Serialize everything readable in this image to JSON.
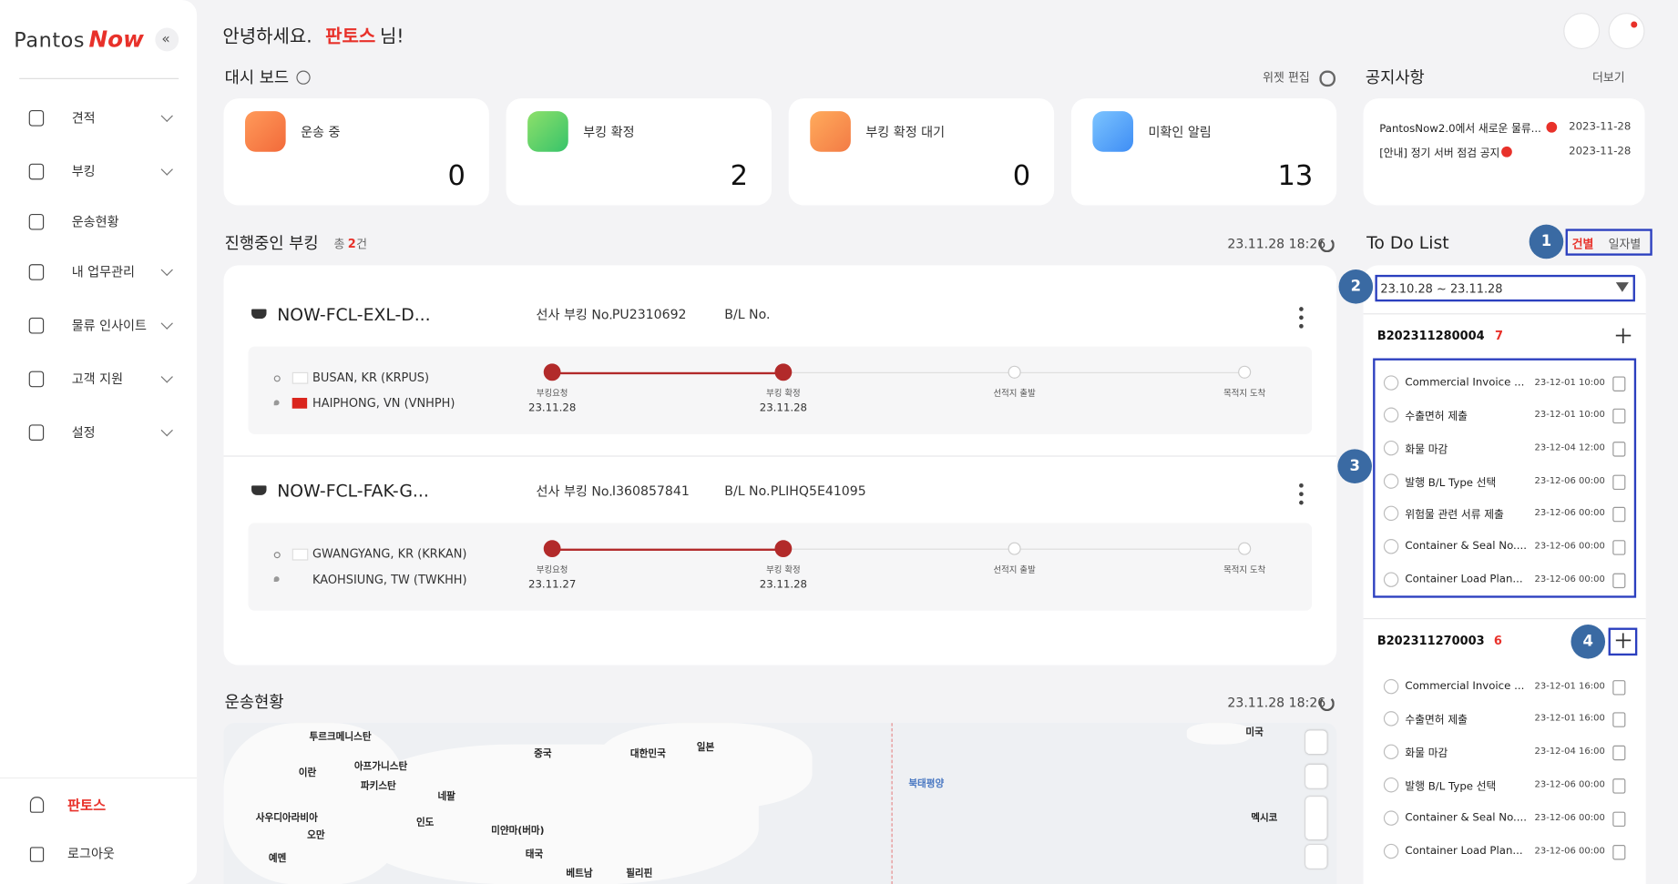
{
  "sidebar": {
    "logo_a": "Pantos",
    "logo_b": "Now",
    "collapse": "«",
    "menu": [
      "견적",
      "부킹",
      "운송현황",
      "내 업무관리",
      "물류 인사이트",
      "고객 지원",
      "설정"
    ],
    "user": "판토스",
    "logout": "로그아웃"
  },
  "header": {
    "greeting": "안녕하세요.",
    "name": "판토스",
    "suffix": "님!"
  },
  "dashboard": {
    "title": "대시 보드",
    "edit": "위젯 편집",
    "cards": [
      {
        "label": "운송 중",
        "value": 0
      },
      {
        "label": "부킹 확정",
        "value": 2
      },
      {
        "label": "부킹 확정 대기",
        "value": 0
      },
      {
        "label": "미확인 알림",
        "value": 13
      }
    ]
  },
  "notices": {
    "title": "공지사항",
    "more": "더보기",
    "items": [
      {
        "text": "PantosNow2.0에서 새로운 물류...",
        "date": "2023-11-28"
      },
      {
        "text": "[안내] 정기 서버 점검 공지",
        "date": "2023-11-28"
      }
    ]
  },
  "bookings": {
    "title": "진행중인 부킹",
    "count_prefix": "총",
    "count": 2,
    "count_unit": "건",
    "updated": "23.11.28 18:26",
    "carrier_label": "선사 부킹 No.",
    "bl_label": "B/L No.",
    "items": [
      {
        "id": "NOW-FCL-EXL-D...",
        "carrier_no": "PU2310692",
        "origin": "BUSAN, KR (KRPUS)",
        "destination": "HAIPHONG, VN (VNHPH)",
        "steps": [
          {
            "label": "부킹요청",
            "date": "23.11.28"
          },
          {
            "label": "부킹 확정",
            "date": "23.11.28"
          },
          {
            "label": "선적지 출발"
          },
          {
            "label": "목적지 도착"
          }
        ]
      },
      {
        "id": "NOW-FCL-FAK-G...",
        "carrier_no": "I360857841",
        "bl_no": "PLIHQ5E41095",
        "origin": "GWANGYANG, KR (KRKAN)",
        "destination": "KAOHSIUNG, TW (TWKHH)",
        "steps": [
          {
            "label": "부킹요청",
            "date": "23.11.27"
          },
          {
            "label": "부킹 확정",
            "date": "23.11.28"
          },
          {
            "label": "선적지 출발"
          },
          {
            "label": "목적지 도착"
          }
        ]
      }
    ]
  },
  "transport": {
    "title": "운송현황",
    "updated": "23.11.28 18:26",
    "map_labels": [
      "투르크메니스탄",
      "이란",
      "아프가니스탄",
      "파키스탄",
      "네팔",
      "인도",
      "사우디아라비아",
      "오만",
      "예멘",
      "중국",
      "대한민국",
      "일본",
      "미얀마(버마)",
      "태국",
      "베트남",
      "필리핀",
      "북태평양",
      "미국",
      "멕시코"
    ]
  },
  "todo": {
    "title": "To Do List",
    "view_by_case": "건별",
    "view_by_date": "일자별",
    "date_range": "23.10.28 ~ 23.11.28",
    "groups": [
      {
        "id": "B202311280004",
        "count": 7,
        "tasks": [
          {
            "name": "Commercial Invoice ...",
            "due": "23-12-01 10:00"
          },
          {
            "name": "수출면허 제출",
            "due": "23-12-01 10:00"
          },
          {
            "name": "화물 마감",
            "due": "23-12-04 12:00"
          },
          {
            "name": "발행 B/L Type 선택",
            "due": "23-12-06 00:00"
          },
          {
            "name": "위험물 관련 서류 제출",
            "due": "23-12-06 00:00"
          },
          {
            "name": "Container & Seal No....",
            "due": "23-12-06 00:00"
          },
          {
            "name": "Container Load Plan...",
            "due": "23-12-06 00:00"
          }
        ]
      },
      {
        "id": "B202311270003",
        "count": 6,
        "tasks": [
          {
            "name": "Commercial Invoice ...",
            "due": "23-12-01 16:00"
          },
          {
            "name": "수출면허 제출",
            "due": "23-12-01 16:00"
          },
          {
            "name": "화물 마감",
            "due": "23-12-04 16:00"
          },
          {
            "name": "발행 B/L Type 선택",
            "due": "23-12-06 00:00"
          },
          {
            "name": "Container & Seal No....",
            "due": "23-12-06 00:00"
          },
          {
            "name": "Container Load Plan...",
            "due": "23-12-06 00:00"
          }
        ]
      }
    ]
  },
  "annotations": [
    1,
    2,
    3,
    4
  ]
}
